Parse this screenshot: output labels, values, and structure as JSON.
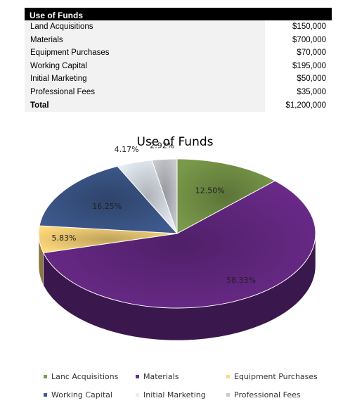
{
  "table": {
    "header": "Use of Funds",
    "rows": [
      {
        "label": "Land Acquisitions",
        "value": "$150,000"
      },
      {
        "label": "Materials",
        "value": "$700,000"
      },
      {
        "label": "Equipment Purchases",
        "value": "$70,000"
      },
      {
        "label": "Working Capital",
        "value": "$195,000"
      },
      {
        "label": "Initial Marketing",
        "value": "$50,000"
      },
      {
        "label": "Professional Fees",
        "value": "$35,000"
      }
    ],
    "total": {
      "label": "Total",
      "value": "$1,200,000"
    }
  },
  "chart_data": {
    "type": "pie",
    "title": "Use of Funds",
    "categories": [
      "Land Acquisitions",
      "Materials",
      "Equipment Purchases",
      "Working Capital",
      "Initial Marketing",
      "Professional Fees"
    ],
    "values": [
      12.5,
      58.33,
      5.83,
      16.25,
      4.17,
      2.92
    ],
    "value_labels": [
      "12.50%",
      "58.33%",
      "5.83%",
      "16.25%",
      "4.17%",
      "2.92%"
    ],
    "legend_labels": [
      "Lanc Acquisitions",
      "Materials",
      "Equipment Purchases",
      "Working Capital",
      "Initial Marketing",
      "Professional Fees"
    ],
    "colors": [
      "#7a9a4a",
      "#6a2a8a",
      "#ffd97a",
      "#3e5a8f",
      "#e8eef6",
      "#c7c9cf"
    ],
    "legend_placement": "bottom",
    "three_d": true
  }
}
